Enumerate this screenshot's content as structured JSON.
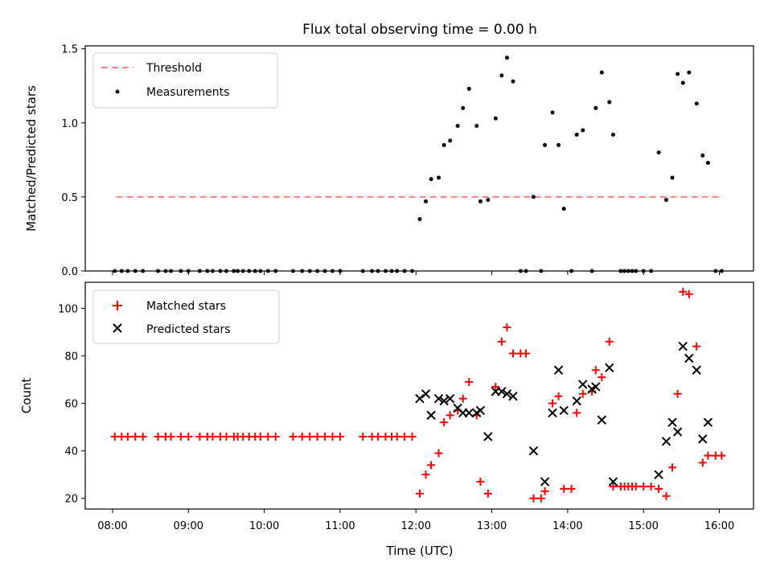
{
  "chart_data": [
    {
      "type": "scatter",
      "title": "Flux total observing time = 0.00 h",
      "xlabel": "",
      "ylabel": "Matched/Predicted stars",
      "xlim": [
        7.64,
        16.45
      ],
      "ylim": [
        0,
        1.52
      ],
      "yticks": [
        0,
        0.5,
        1.0,
        1.5
      ],
      "ytick_labels": [
        "0.0",
        "0.5",
        "1.0",
        "1.5"
      ],
      "legend": {
        "position": "upper-left",
        "entries": [
          {
            "label": "Threshold",
            "color": "#ff8080"
          },
          {
            "label": "Measurements",
            "color": "#000000"
          }
        ]
      },
      "threshold": {
        "name": "Threshold",
        "value": 0.5,
        "x_range": [
          8.05,
          16.05
        ],
        "color": "#ff8080"
      },
      "series": [
        {
          "name": "Measurements",
          "color": "#000000",
          "points": [
            [
              8.03,
              0
            ],
            [
              8.12,
              0
            ],
            [
              8.2,
              0
            ],
            [
              8.3,
              0
            ],
            [
              8.4,
              0
            ],
            [
              8.6,
              0
            ],
            [
              8.7,
              0
            ],
            [
              8.77,
              0
            ],
            [
              8.9,
              0
            ],
            [
              9.0,
              0
            ],
            [
              9.15,
              0
            ],
            [
              9.25,
              0
            ],
            [
              9.32,
              0
            ],
            [
              9.42,
              0
            ],
            [
              9.5,
              0
            ],
            [
              9.6,
              0
            ],
            [
              9.65,
              0
            ],
            [
              9.72,
              0
            ],
            [
              9.8,
              0
            ],
            [
              9.88,
              0
            ],
            [
              9.95,
              0
            ],
            [
              10.05,
              0
            ],
            [
              10.15,
              0
            ],
            [
              10.38,
              0
            ],
            [
              10.5,
              0
            ],
            [
              10.6,
              0
            ],
            [
              10.7,
              0
            ],
            [
              10.8,
              0
            ],
            [
              10.9,
              0
            ],
            [
              11.0,
              0
            ],
            [
              11.3,
              0
            ],
            [
              11.42,
              0
            ],
            [
              11.5,
              0
            ],
            [
              11.6,
              0
            ],
            [
              11.68,
              0
            ],
            [
              11.75,
              0
            ],
            [
              11.85,
              0
            ],
            [
              11.95,
              0
            ],
            [
              12.05,
              0.35
            ],
            [
              12.13,
              0.47
            ],
            [
              12.2,
              0.62
            ],
            [
              12.3,
              0.63
            ],
            [
              12.37,
              0.85
            ],
            [
              12.45,
              0.88
            ],
            [
              12.55,
              0.98
            ],
            [
              12.62,
              1.1
            ],
            [
              12.7,
              1.23
            ],
            [
              12.8,
              0.98
            ],
            [
              12.85,
              0.47
            ],
            [
              12.95,
              0.48
            ],
            [
              13.05,
              1.03
            ],
            [
              13.13,
              1.32
            ],
            [
              13.2,
              1.44
            ],
            [
              13.28,
              1.28
            ],
            [
              13.38,
              0
            ],
            [
              13.45,
              0
            ],
            [
              13.55,
              0.5
            ],
            [
              13.65,
              0
            ],
            [
              13.7,
              0.85
            ],
            [
              13.8,
              1.07
            ],
            [
              13.88,
              0.85
            ],
            [
              13.95,
              0.42
            ],
            [
              14.05,
              0
            ],
            [
              14.12,
              0.92
            ],
            [
              14.2,
              0.95
            ],
            [
              14.32,
              0
            ],
            [
              14.37,
              1.1
            ],
            [
              14.45,
              1.34
            ],
            [
              14.55,
              1.14
            ],
            [
              14.6,
              0.92
            ],
            [
              14.7,
              0
            ],
            [
              14.75,
              0
            ],
            [
              14.8,
              0
            ],
            [
              14.85,
              0
            ],
            [
              14.9,
              0
            ],
            [
              15.0,
              0
            ],
            [
              15.1,
              0
            ],
            [
              15.2,
              0.8
            ],
            [
              15.3,
              0.48
            ],
            [
              15.38,
              0.63
            ],
            [
              15.45,
              1.33
            ],
            [
              15.52,
              1.27
            ],
            [
              15.6,
              1.34
            ],
            [
              15.7,
              1.13
            ],
            [
              15.78,
              0.78
            ],
            [
              15.85,
              0.73
            ],
            [
              15.95,
              0
            ],
            [
              16.03,
              0
            ]
          ]
        }
      ]
    },
    {
      "type": "scatter",
      "title": "",
      "xlabel": "Time (UTC)",
      "ylabel": "Count",
      "xlim": [
        7.64,
        16.45
      ],
      "ylim": [
        15.5,
        111
      ],
      "yticks": [
        20,
        40,
        60,
        80,
        100
      ],
      "ytick_labels": [
        "20",
        "40",
        "60",
        "80",
        "100"
      ],
      "xticks": [
        8,
        9,
        10,
        11,
        12,
        13,
        14,
        15,
        16
      ],
      "xtick_labels": [
        "08:00",
        "09:00",
        "10:00",
        "11:00",
        "12:00",
        "13:00",
        "14:00",
        "15:00",
        "16:00"
      ],
      "legend": {
        "position": "upper-left",
        "entries": [
          {
            "label": "Matched stars",
            "color": "#ff0000",
            "marker": "plus"
          },
          {
            "label": "Predicted stars",
            "color": "#000000",
            "marker": "x"
          }
        ]
      },
      "series": [
        {
          "name": "Matched stars",
          "color": "#ff0000",
          "marker": "plus",
          "points": [
            [
              8.03,
              46
            ],
            [
              8.12,
              46
            ],
            [
              8.2,
              46
            ],
            [
              8.3,
              46
            ],
            [
              8.4,
              46
            ],
            [
              8.6,
              46
            ],
            [
              8.7,
              46
            ],
            [
              8.77,
              46
            ],
            [
              8.9,
              46
            ],
            [
              9.0,
              46
            ],
            [
              9.15,
              46
            ],
            [
              9.25,
              46
            ],
            [
              9.32,
              46
            ],
            [
              9.42,
              46
            ],
            [
              9.5,
              46
            ],
            [
              9.6,
              46
            ],
            [
              9.65,
              46
            ],
            [
              9.72,
              46
            ],
            [
              9.8,
              46
            ],
            [
              9.88,
              46
            ],
            [
              9.95,
              46
            ],
            [
              10.05,
              46
            ],
            [
              10.15,
              46
            ],
            [
              10.38,
              46
            ],
            [
              10.5,
              46
            ],
            [
              10.6,
              46
            ],
            [
              10.7,
              46
            ],
            [
              10.8,
              46
            ],
            [
              10.9,
              46
            ],
            [
              11.0,
              46
            ],
            [
              11.3,
              46
            ],
            [
              11.42,
              46
            ],
            [
              11.5,
              46
            ],
            [
              11.6,
              46
            ],
            [
              11.68,
              46
            ],
            [
              11.75,
              46
            ],
            [
              11.85,
              46
            ],
            [
              11.95,
              46
            ],
            [
              12.05,
              22
            ],
            [
              12.13,
              30
            ],
            [
              12.2,
              34
            ],
            [
              12.3,
              39
            ],
            [
              12.37,
              52
            ],
            [
              12.45,
              55
            ],
            [
              12.55,
              57
            ],
            [
              12.62,
              62
            ],
            [
              12.7,
              69
            ],
            [
              12.8,
              55
            ],
            [
              12.85,
              27
            ],
            [
              12.95,
              22
            ],
            [
              13.05,
              67
            ],
            [
              13.13,
              86
            ],
            [
              13.2,
              92
            ],
            [
              13.28,
              81
            ],
            [
              13.38,
              81
            ],
            [
              13.45,
              81
            ],
            [
              13.55,
              20
            ],
            [
              13.65,
              20
            ],
            [
              13.7,
              23
            ],
            [
              13.8,
              60
            ],
            [
              13.88,
              63
            ],
            [
              13.95,
              24
            ],
            [
              14.05,
              24
            ],
            [
              14.12,
              56
            ],
            [
              14.2,
              64
            ],
            [
              14.32,
              65
            ],
            [
              14.37,
              74
            ],
            [
              14.45,
              71
            ],
            [
              14.55,
              86
            ],
            [
              14.6,
              25
            ],
            [
              14.7,
              25
            ],
            [
              14.75,
              25
            ],
            [
              14.8,
              25
            ],
            [
              14.85,
              25
            ],
            [
              14.9,
              25
            ],
            [
              15.0,
              25
            ],
            [
              15.1,
              25
            ],
            [
              15.2,
              24
            ],
            [
              15.3,
              21
            ],
            [
              15.38,
              33
            ],
            [
              15.45,
              64
            ],
            [
              15.52,
              107
            ],
            [
              15.6,
              106
            ],
            [
              15.7,
              84
            ],
            [
              15.78,
              35
            ],
            [
              15.85,
              38
            ],
            [
              15.95,
              38
            ],
            [
              16.03,
              38
            ]
          ]
        },
        {
          "name": "Predicted stars",
          "color": "#000000",
          "marker": "x",
          "points": [
            [
              12.05,
              62
            ],
            [
              12.13,
              64
            ],
            [
              12.2,
              55
            ],
            [
              12.3,
              62
            ],
            [
              12.37,
              61
            ],
            [
              12.45,
              62
            ],
            [
              12.55,
              58
            ],
            [
              12.62,
              56
            ],
            [
              12.7,
              56
            ],
            [
              12.8,
              56
            ],
            [
              12.85,
              57
            ],
            [
              12.95,
              46
            ],
            [
              13.05,
              65
            ],
            [
              13.13,
              65
            ],
            [
              13.2,
              64
            ],
            [
              13.28,
              63
            ],
            [
              13.55,
              40
            ],
            [
              13.7,
              27
            ],
            [
              13.8,
              56
            ],
            [
              13.88,
              74
            ],
            [
              13.95,
              57
            ],
            [
              14.12,
              61
            ],
            [
              14.2,
              68
            ],
            [
              14.32,
              66
            ],
            [
              14.37,
              67
            ],
            [
              14.45,
              53
            ],
            [
              14.55,
              75
            ],
            [
              14.6,
              27
            ],
            [
              15.2,
              30
            ],
            [
              15.3,
              44
            ],
            [
              15.38,
              52
            ],
            [
              15.45,
              48
            ],
            [
              15.52,
              84
            ],
            [
              15.6,
              79
            ],
            [
              15.7,
              74
            ],
            [
              15.78,
              45
            ],
            [
              15.85,
              52
            ]
          ]
        }
      ]
    }
  ]
}
